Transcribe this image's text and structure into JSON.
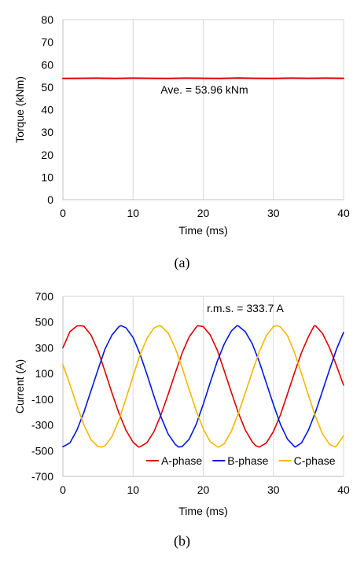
{
  "chart_data": [
    {
      "type": "line",
      "panel_label": "(a)",
      "xlabel": "Time (ms)",
      "ylabel": "Torque (kNm)",
      "xlim": [
        0,
        40
      ],
      "ylim": [
        0,
        80
      ],
      "xticks": [
        0,
        10,
        20,
        30,
        40
      ],
      "yticks": [
        0,
        10,
        20,
        30,
        40,
        50,
        60,
        70,
        80
      ],
      "grid": "vertical",
      "annotation": "Ave. = 53.96 kNm",
      "series": [
        {
          "color": "#e00000",
          "x": [
            0,
            2.5,
            5,
            7.5,
            10,
            12.5,
            15,
            17.5,
            20,
            22.5,
            25,
            27.5,
            30,
            32.5,
            35,
            37.5,
            40
          ],
          "values": [
            53.9,
            53.95,
            54.0,
            53.9,
            54.0,
            53.95,
            53.9,
            54.0,
            53.95,
            53.9,
            54.05,
            53.95,
            53.9,
            54.0,
            53.95,
            54.0,
            53.95
          ]
        }
      ]
    },
    {
      "type": "line",
      "panel_label": "(b)",
      "xlabel": "Time (ms)",
      "ylabel": "Current (A)",
      "xlim": [
        0,
        40
      ],
      "ylim": [
        -700,
        700
      ],
      "xticks": [
        0,
        10,
        20,
        30,
        40
      ],
      "yticks": [
        700,
        500,
        300,
        100,
        -100,
        -300,
        -500,
        -700
      ],
      "grid": "vertical",
      "annotation": "r.m.s. = 333.7 A",
      "legend_position": "bottom-right",
      "series": [
        {
          "name": "A-phase",
          "color": "#e00000",
          "x": [
            0,
            1,
            2,
            2.5,
            3,
            4,
            5,
            6,
            7,
            8,
            9,
            10,
            10.8,
            11,
            12,
            13,
            14,
            15,
            16,
            17,
            18,
            19,
            19.2,
            20,
            21,
            22,
            23,
            24,
            25,
            26,
            27,
            27.5,
            28,
            29,
            30,
            31,
            32,
            33,
            34,
            35,
            35.8,
            36,
            37,
            38,
            39,
            40
          ],
          "values": [
            300,
            425,
            470,
            472,
            468,
            400,
            278,
            116,
            -52,
            -210,
            -342,
            -434,
            -472,
            -470,
            -437,
            -350,
            -218,
            -62,
            102,
            260,
            385,
            460,
            472,
            465,
            400,
            282,
            120,
            -45,
            -205,
            -340,
            -432,
            -462,
            -472,
            -440,
            -352,
            -222,
            -60,
            105,
            262,
            387,
            470,
            472,
            412,
            300,
            160,
            10
          ]
        },
        {
          "name": "B-phase",
          "color": "#0018e0",
          "x": [
            0,
            1,
            2,
            3,
            4,
            5,
            6,
            7,
            8,
            8.3,
            9,
            10,
            11,
            12,
            13,
            14,
            15,
            16,
            16.5,
            17,
            18,
            19,
            20,
            21,
            22,
            23,
            24,
            24.8,
            25,
            26,
            27,
            28,
            29,
            30,
            31,
            32,
            33,
            33.1,
            34,
            35,
            36,
            37,
            38,
            39,
            40
          ],
          "values": [
            -470,
            -440,
            -340,
            -200,
            -35,
            130,
            290,
            400,
            465,
            472,
            455,
            380,
            250,
            90,
            -80,
            -240,
            -370,
            -450,
            -472,
            -468,
            -410,
            -295,
            -140,
            30,
            195,
            330,
            430,
            472,
            470,
            425,
            330,
            190,
            25,
            -140,
            -295,
            -410,
            -468,
            -472,
            -440,
            -340,
            -200,
            -35,
            130,
            290,
            420
          ]
        },
        {
          "name": "C-phase",
          "color": "#f5b800",
          "x": [
            0,
            1,
            2,
            3,
            4,
            5,
            5.5,
            6,
            7,
            8,
            9,
            10,
            11,
            12,
            13,
            13.7,
            14,
            15,
            16,
            17,
            18,
            19,
            20,
            21,
            22,
            22.2,
            23,
            24,
            25,
            26,
            27,
            28,
            29,
            30,
            30.5,
            31,
            32,
            33,
            34,
            35,
            36,
            37,
            38,
            38.8,
            39,
            40
          ],
          "values": [
            170,
            15,
            -150,
            -300,
            -415,
            -468,
            -472,
            -462,
            -390,
            -260,
            -95,
            80,
            245,
            375,
            455,
            472,
            468,
            415,
            300,
            145,
            -25,
            -190,
            -330,
            -430,
            -470,
            -472,
            -445,
            -350,
            -210,
            -50,
            115,
            270,
            395,
            465,
            472,
            462,
            395,
            265,
            100,
            -70,
            -235,
            -370,
            -450,
            -472,
            -462,
            -385
          ]
        }
      ]
    }
  ]
}
